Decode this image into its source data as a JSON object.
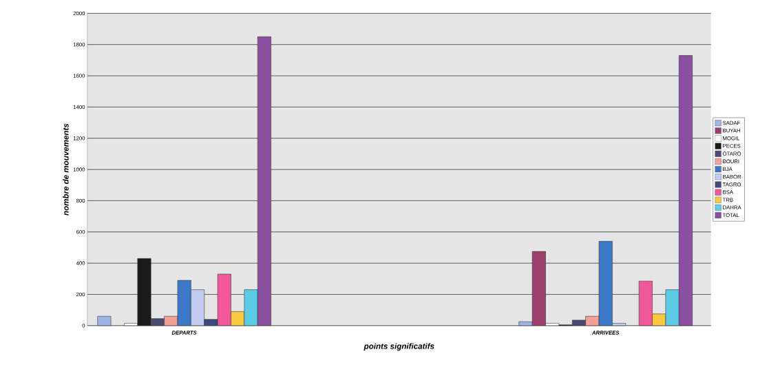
{
  "chart_data": {
    "type": "bar",
    "xlabel": "points significatifs",
    "ylabel": "nombre de mouvements",
    "categories": [
      "DEPARTS",
      "ARRIVEES"
    ],
    "series": [
      {
        "name": "SADAF",
        "color": "#9fb4e6",
        "values": [
          60,
          25
        ]
      },
      {
        "name": "BUYAH",
        "color": "#9b3f6e",
        "values": [
          null,
          475
        ]
      },
      {
        "name": "MOGIL",
        "color": "#ffffff",
        "values": [
          15,
          15
        ]
      },
      {
        "name": "PECES",
        "color": "#1a1a1a",
        "values": [
          430,
          5
        ]
      },
      {
        "name": "OTARO",
        "color": "#4a4a72",
        "values": [
          45,
          35
        ]
      },
      {
        "name": "BOURI",
        "color": "#f4a096",
        "values": [
          60,
          60
        ]
      },
      {
        "name": "BJA",
        "color": "#3b78c8",
        "values": [
          290,
          540
        ]
      },
      {
        "name": "BABOR",
        "color": "#c2ccf0",
        "values": [
          230,
          15
        ]
      },
      {
        "name": "TAGRO",
        "color": "#3c4a80",
        "values": [
          40,
          null
        ]
      },
      {
        "name": "BSA",
        "color": "#f0589a",
        "values": [
          330,
          285
        ]
      },
      {
        "name": "TRB",
        "color": "#f8c840",
        "values": [
          90,
          75
        ]
      },
      {
        "name": "DAHRA",
        "color": "#5ccce6",
        "values": [
          230,
          230
        ]
      },
      {
        "name": "TOTAL",
        "color": "#8a4fa0",
        "values": [
          1850,
          1730
        ]
      }
    ],
    "ylim": [
      0,
      2000
    ],
    "yticks": [
      0,
      200,
      400,
      600,
      800,
      1000,
      1200,
      1400,
      1600,
      1800,
      2000
    ],
    "grid": "y",
    "legend": "right"
  }
}
